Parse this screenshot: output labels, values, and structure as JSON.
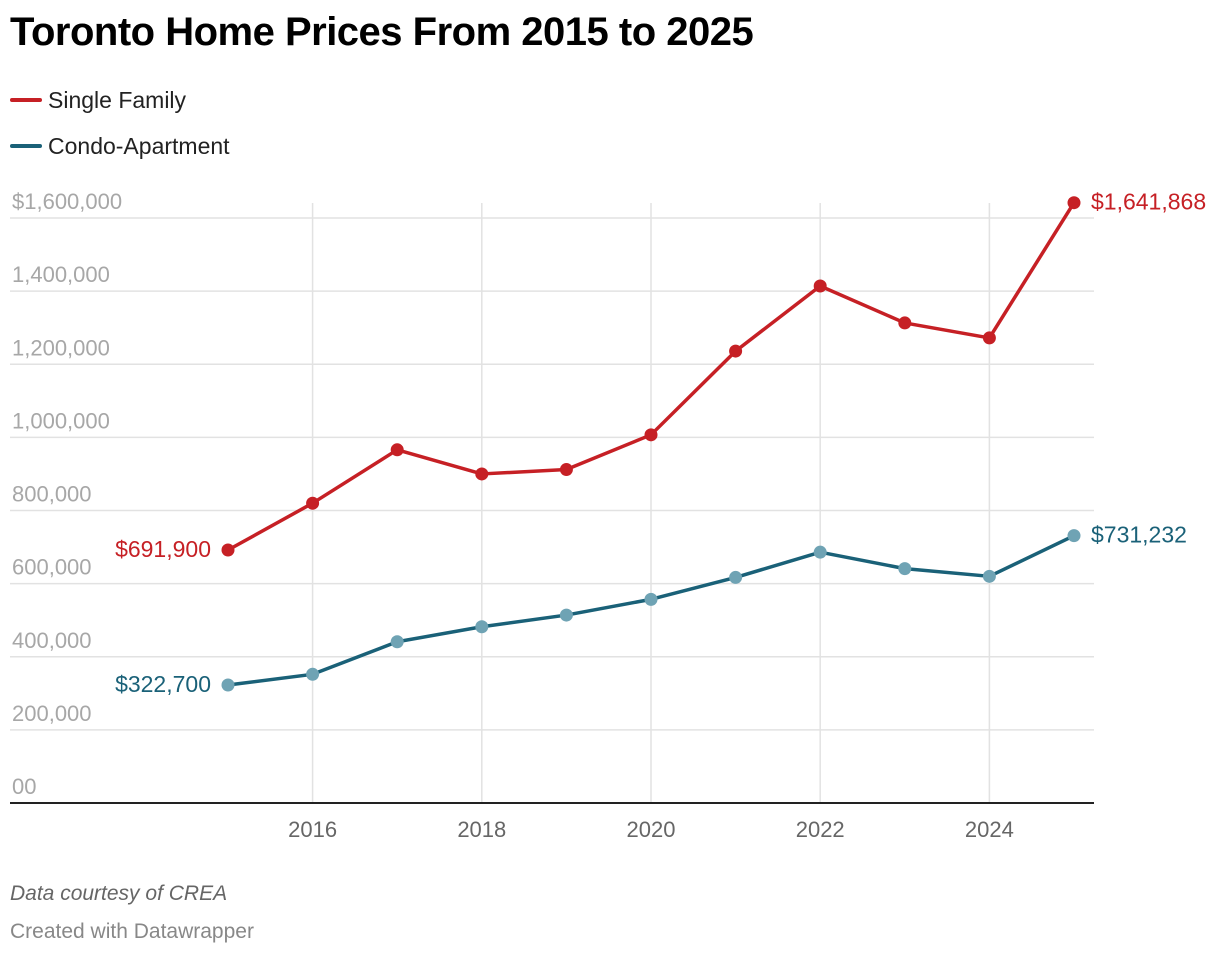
{
  "title": "Toronto Home Prices From 2015 to 2025",
  "source_note": "Data courtesy of CREA",
  "credit": "Created with Datawrapper",
  "colors": {
    "single_family": "#c62025",
    "condo": "#1a6178",
    "condo_marker": "#6fa3b4"
  },
  "chart_data": {
    "type": "line",
    "x": [
      2015,
      2016,
      2017,
      2018,
      2019,
      2020,
      2021,
      2022,
      2023,
      2024,
      2025
    ],
    "series": [
      {
        "name": "Single Family",
        "values": [
          691900,
          820000,
          966000,
          900000,
          912000,
          1007000,
          1236000,
          1414000,
          1313000,
          1272000,
          1641868
        ]
      },
      {
        "name": "Condo-Apartment",
        "values": [
          322700,
          352000,
          441000,
          482000,
          514000,
          557000,
          617000,
          686000,
          641000,
          620000,
          731232
        ]
      }
    ],
    "start_labels": [
      "$691,900",
      "$322,700"
    ],
    "end_labels": [
      "$1,641,868",
      "$731,232"
    ],
    "ylim": [
      0,
      1600000
    ],
    "yticks": [
      0,
      200000,
      400000,
      600000,
      800000,
      1000000,
      1200000,
      1400000,
      1600000
    ],
    "ytick_labels": [
      "00",
      "200,000",
      "400,000",
      "600,000",
      "800,000",
      "1,000,000",
      "1,200,000",
      "1,400,000",
      "$1,600,000"
    ],
    "xticks": [
      2016,
      2018,
      2020,
      2022,
      2024
    ],
    "xtick_labels": [
      "2016",
      "2018",
      "2020",
      "2022",
      "2024"
    ],
    "grid": true,
    "legend_position": "top-left"
  }
}
